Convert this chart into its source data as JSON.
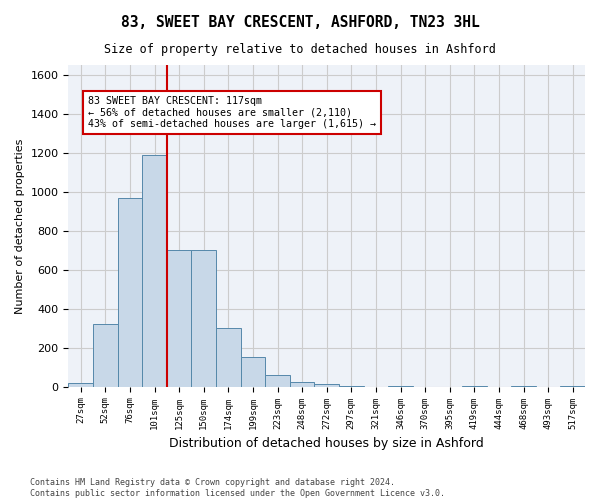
{
  "title1": "83, SWEET BAY CRESCENT, ASHFORD, TN23 3HL",
  "title2": "Size of property relative to detached houses in Ashford",
  "xlabel": "Distribution of detached houses by size in Ashford",
  "ylabel": "Number of detached properties",
  "bar_values": [
    20,
    320,
    970,
    1190,
    700,
    700,
    300,
    150,
    60,
    25,
    15,
    5,
    0,
    5,
    0,
    0,
    5,
    0,
    5,
    0,
    5
  ],
  "bar_labels": [
    "27sqm",
    "52sqm",
    "76sqm",
    "101sqm",
    "125sqm",
    "150sqm",
    "174sqm",
    "199sqm",
    "223sqm",
    "248sqm",
    "272sqm",
    "297sqm",
    "321sqm",
    "346sqm",
    "370sqm",
    "395sqm",
    "419sqm",
    "444sqm",
    "468sqm",
    "493sqm",
    "517sqm"
  ],
  "bar_color": "#c8d8e8",
  "bar_edge_color": "#5588aa",
  "grid_color": "#cccccc",
  "bg_color": "#eef2f8",
  "vline_color": "#cc0000",
  "annotation_text": "83 SWEET BAY CRESCENT: 117sqm\n← 56% of detached houses are smaller (2,110)\n43% of semi-detached houses are larger (1,615) →",
  "annotation_box_color": "#cc0000",
  "ylim": [
    0,
    1650
  ],
  "yticks": [
    0,
    200,
    400,
    600,
    800,
    1000,
    1200,
    1400,
    1600
  ],
  "footnote": "Contains HM Land Registry data © Crown copyright and database right 2024.\nContains public sector information licensed under the Open Government Licence v3.0."
}
